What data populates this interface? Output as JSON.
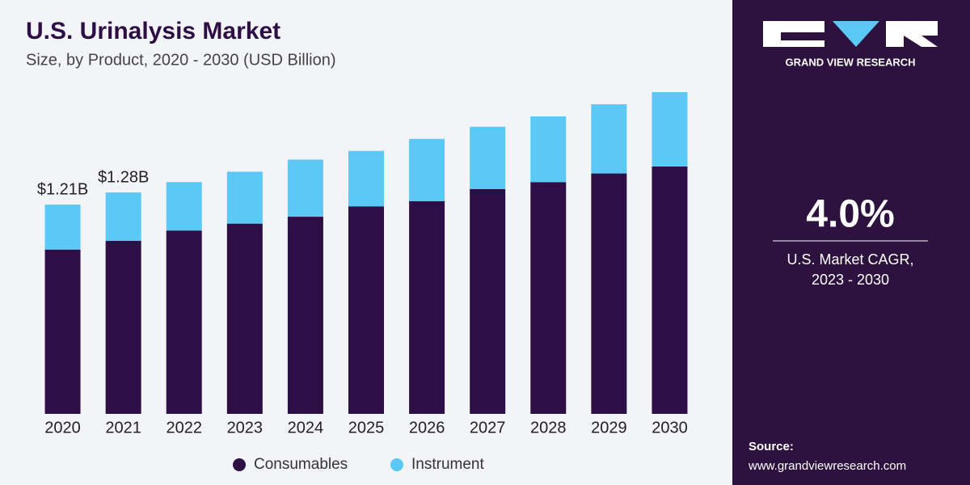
{
  "chart_data": {
    "type": "stacked-bar",
    "title": "U.S. Urinalysis Market",
    "subtitle": "Size, by Product, 2020 - 2030 (USD Billion)",
    "categories": [
      "2020",
      "2021",
      "2022",
      "2023",
      "2024",
      "2025",
      "2026",
      "2027",
      "2028",
      "2029",
      "2030"
    ],
    "series": [
      {
        "name": "Consumables",
        "color": "#2e0f45",
        "values": [
          0.95,
          1.0,
          1.06,
          1.1,
          1.14,
          1.2,
          1.23,
          1.3,
          1.34,
          1.39,
          1.43
        ]
      },
      {
        "name": "Instrument",
        "color": "#5bc8f5",
        "values": [
          0.26,
          0.28,
          0.28,
          0.3,
          0.33,
          0.32,
          0.36,
          0.36,
          0.38,
          0.4,
          0.43
        ]
      }
    ],
    "annotations": [
      "$1.21B",
      "$1.28B"
    ]
  },
  "side_panel": {
    "brand": "GRAND VIEW RESEARCH",
    "cagr": "4.0%",
    "cagr_label": [
      "U.S. Market CAGR,",
      "2023 - 2030"
    ],
    "source_label": "Source:",
    "source_url": "www.grandviewresearch.com"
  }
}
